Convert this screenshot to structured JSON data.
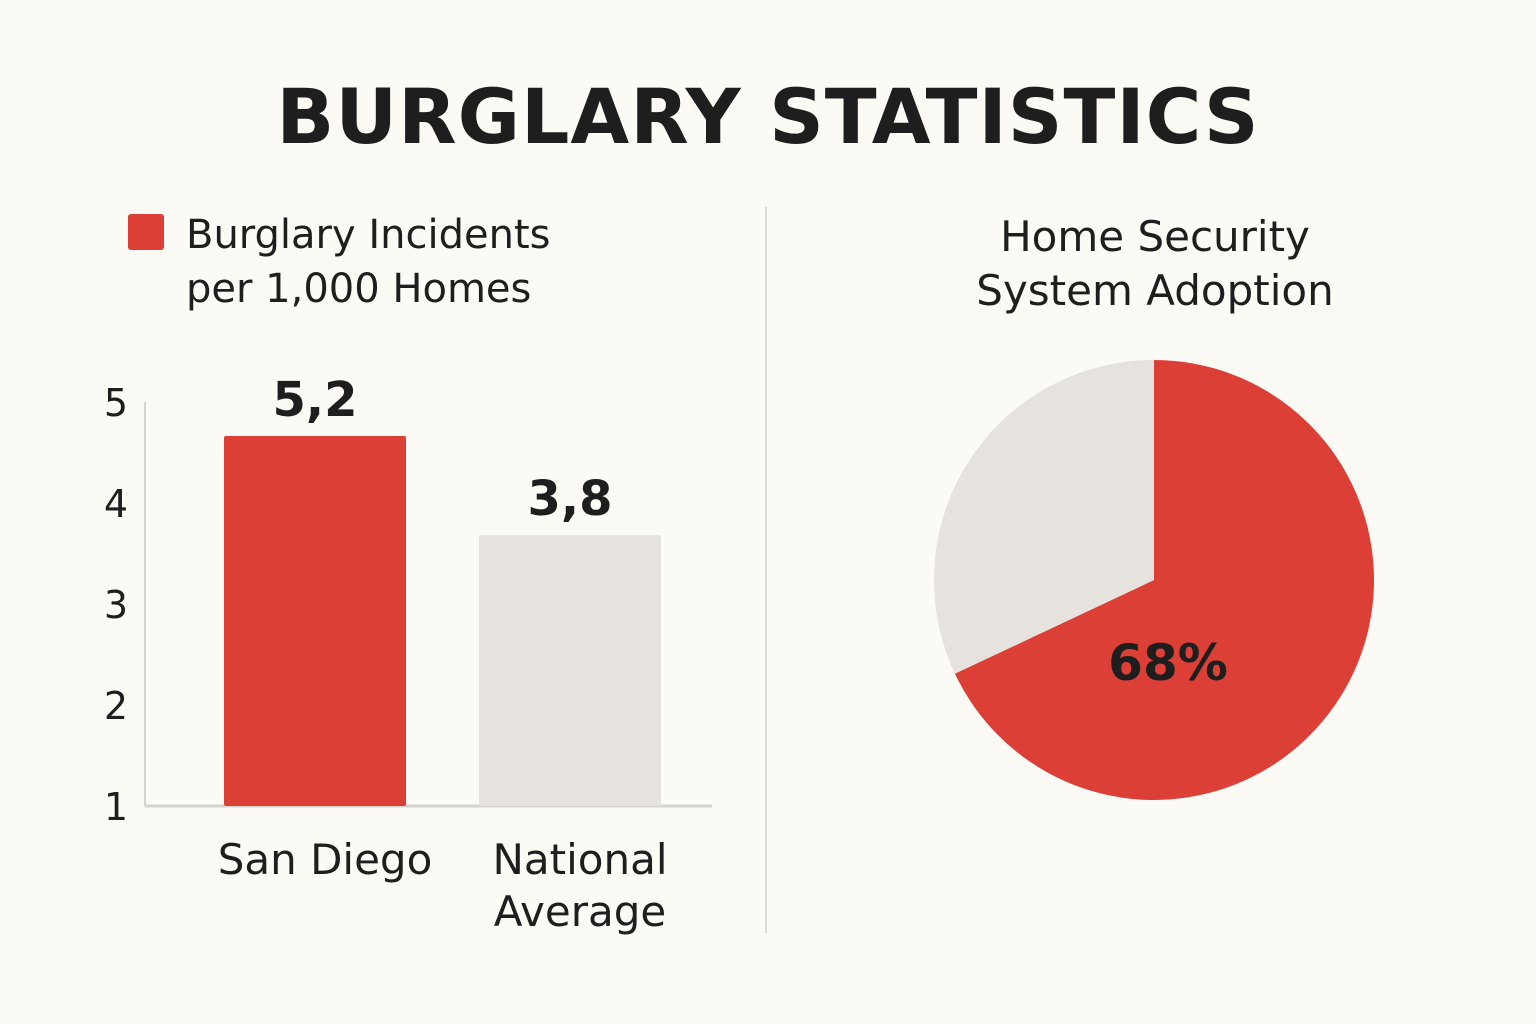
{
  "title": "BURGLARY STATISTICS",
  "chart_data": [
    {
      "type": "bar",
      "legend": [
        {
          "label": "Burglary Incidents\nper 1,000 Homes",
          "color": "#dc3f35"
        }
      ],
      "categories": [
        "San Diego",
        "National\nAverage"
      ],
      "values": [
        5.2,
        3.8
      ],
      "value_labels": [
        "5,2",
        "3,8"
      ],
      "colors": [
        "#dc3f35",
        "#e6e3de"
      ],
      "y_ticks": [
        "1",
        "2",
        "3",
        "4",
        "5"
      ],
      "ylim": [
        1,
        5
      ],
      "grid": false,
      "xlabel": "",
      "ylabel": ""
    },
    {
      "type": "pie",
      "title": "Home Security\nSystem Adoption",
      "slices": [
        {
          "value": 68,
          "label": "68%",
          "color": "#dc3f35"
        },
        {
          "value": 32,
          "label": "",
          "color": "#e6e3de"
        }
      ]
    }
  ]
}
